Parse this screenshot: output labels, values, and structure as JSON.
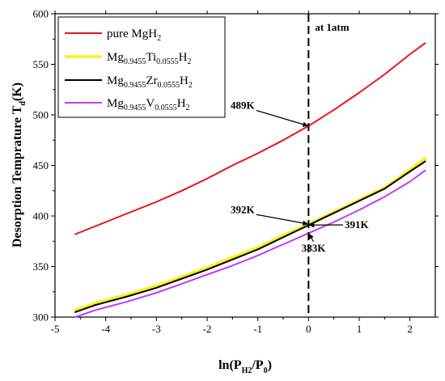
{
  "chart_data": {
    "type": "line",
    "xlabel": "ln(PH2/P0)",
    "xlabel_parts": {
      "base": "ln(P",
      "sub1": "H2",
      "mid": "/P",
      "sub2": "0",
      "end": ")"
    },
    "ylabel": "Desorption Temprature Td(K)",
    "ylabel_parts": {
      "base": "Desorption Temprature T",
      "sub": "d",
      "end": "(K)"
    },
    "xlim": [
      -5,
      2.5
    ],
    "ylim": [
      300,
      600
    ],
    "xticks": [
      -5,
      -4,
      -3,
      -2,
      -1,
      0,
      1,
      2
    ],
    "yticks": [
      300,
      350,
      400,
      450,
      500,
      550,
      600
    ],
    "grid": false,
    "legend_position": "top-left",
    "series": [
      {
        "name": "pure MgH2",
        "legend": {
          "base": "pure MgH",
          "sub": "2",
          "parts": []
        },
        "color": "#e8141d",
        "width": 2,
        "x": [
          -4.6,
          -4.0,
          -3.5,
          -3.0,
          -2.5,
          -2.0,
          -1.5,
          -1.0,
          -0.5,
          0.0,
          0.5,
          1.0,
          1.5,
          2.0,
          2.3
        ],
        "y": [
          382,
          394,
          404,
          414,
          425,
          437,
          450,
          462,
          475,
          489,
          505,
          522,
          540,
          560,
          571
        ]
      },
      {
        "name": "Mg0.9455Ti0.0555H2",
        "legend": {
          "parts": [
            "Mg",
            "0.9455",
            "Ti",
            "0.0555",
            "H",
            "2"
          ]
        },
        "color": "#ffef1a",
        "width": 3.5,
        "x": [
          -4.6,
          -4.2,
          -3.6,
          -3.0,
          -2.5,
          -2.0,
          -1.5,
          -1.0,
          -0.5,
          0.0,
          0.5,
          1.0,
          1.5,
          2.0,
          2.3
        ],
        "y": [
          307,
          314,
          322,
          331,
          340,
          349,
          359,
          369,
          381,
          392,
          404,
          416,
          428,
          446,
          457
        ]
      },
      {
        "name": "Mg0.9455Zr0.0555H2",
        "legend": {
          "parts": [
            "Mg",
            "0.9455",
            "Zr",
            "0.0555",
            "H",
            "2"
          ]
        },
        "color": "#000000",
        "width": 2,
        "x": [
          -4.6,
          -4.2,
          -3.6,
          -3.0,
          -2.5,
          -2.0,
          -1.5,
          -1.0,
          -0.5,
          0.0,
          0.5,
          1.0,
          1.5,
          2.0,
          2.3
        ],
        "y": [
          305,
          312,
          320,
          329,
          338,
          347,
          357,
          367,
          379,
          391,
          403,
          415,
          427,
          444,
          454
        ]
      },
      {
        "name": "Mg0.9455V0.0555H2",
        "legend": {
          "parts": [
            "Mg",
            "0.9455",
            "V",
            "0.0555",
            "H",
            "2"
          ]
        },
        "color": "#c43bf0",
        "width": 2,
        "x": [
          -4.6,
          -4.2,
          -3.6,
          -3.0,
          -2.5,
          -2.0,
          -1.5,
          -1.0,
          -0.5,
          0.0,
          0.5,
          1.0,
          1.5,
          2.0,
          2.3
        ],
        "y": [
          300,
          307,
          315,
          324,
          333,
          342,
          351,
          361,
          372,
          383,
          394,
          406,
          419,
          434,
          445
        ]
      }
    ],
    "vline": {
      "x": 0,
      "label": "at 1atm"
    },
    "annotations": [
      {
        "text": "489K",
        "point": [
          0,
          489
        ],
        "label_at": [
          -1.3,
          506
        ]
      },
      {
        "text": "392K",
        "point": [
          0,
          392
        ],
        "label_at": [
          -1.3,
          403
        ]
      },
      {
        "text": "391K",
        "point": [
          0,
          391
        ],
        "label_at": [
          0.95,
          388
        ]
      },
      {
        "text": "383K",
        "point": [
          0,
          383
        ],
        "label_at": [
          0.1,
          365
        ]
      }
    ]
  }
}
